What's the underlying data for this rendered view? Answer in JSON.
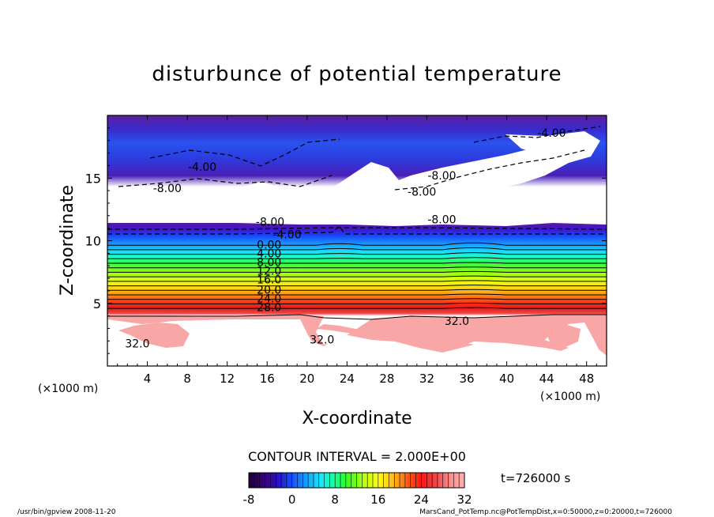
{
  "chart_data": {
    "type": "heatmap",
    "title": "disturbunce of potential temperature",
    "xlabel": "X-coordinate",
    "ylabel": "Z-coordinate",
    "x_unit_left": "(×1000 m)",
    "x_unit_right": "(×1000 m)",
    "xlim": [
      0,
      50
    ],
    "ylim": [
      0,
      20
    ],
    "x_ticks": [
      "4",
      "8",
      "12",
      "16",
      "20",
      "24",
      "28",
      "32",
      "36",
      "40",
      "44",
      "48"
    ],
    "y_ticks": [
      "5",
      "10",
      "15"
    ],
    "contour_interval_text": "CONTOUR INTERVAL = 2.000E+00",
    "time_text": "t=726000 s",
    "colorbar": {
      "min": -8,
      "max": 32,
      "tick_labels": [
        "-8",
        "0",
        "8",
        "16",
        "24",
        "32"
      ],
      "stops": [
        "#1a0033",
        "#3a0078",
        "#2a10c8",
        "#1450ff",
        "#14a0ff",
        "#14e8ff",
        "#14ff90",
        "#3cff14",
        "#b8ff14",
        "#ffff14",
        "#ffbe14",
        "#ff6414",
        "#ff1414",
        "#f04646",
        "#fa8c8c",
        "#ffb4b4"
      ]
    },
    "contour_labels": [
      {
        "text": "-4.00",
        "x": 44.5,
        "z": 18.6
      },
      {
        "text": "-4.00",
        "x": 9.5,
        "z": 15.9
      },
      {
        "text": "-8.00",
        "x": 6.0,
        "z": 14.2
      },
      {
        "text": "-8.00",
        "x": 33.5,
        "z": 15.2
      },
      {
        "text": "-8.00",
        "x": 31.5,
        "z": 13.9
      },
      {
        "text": "-8.00",
        "x": 33.5,
        "z": 11.7
      },
      {
        "text": "-8.00",
        "x": 16.3,
        "z": 11.5
      },
      {
        "text": "-4.00",
        "x": 18.0,
        "z": 10.5
      },
      {
        "text": "0.00",
        "x": 16.2,
        "z": 9.7
      },
      {
        "text": "4.00",
        "x": 16.2,
        "z": 9.0
      },
      {
        "text": "8.00",
        "x": 16.2,
        "z": 8.3
      },
      {
        "text": "12.0",
        "x": 16.2,
        "z": 7.6
      },
      {
        "text": "16.0",
        "x": 16.2,
        "z": 6.9
      },
      {
        "text": "20.0",
        "x": 16.2,
        "z": 6.1
      },
      {
        "text": "24.0",
        "x": 16.2,
        "z": 5.4
      },
      {
        "text": "28.0",
        "x": 16.2,
        "z": 4.7
      },
      {
        "text": "32.0",
        "x": 35.0,
        "z": 3.6
      },
      {
        "text": "32.0",
        "x": 3.0,
        "z": 1.8
      },
      {
        "text": "32.0",
        "x": 21.5,
        "z": 2.1
      }
    ]
  },
  "footer": {
    "left": "/usr/bin/gpview   2008-11-20",
    "right": "MarsCand_PotTemp.nc@PotTempDist,x=0:50000,z=0:20000,t=726000"
  }
}
